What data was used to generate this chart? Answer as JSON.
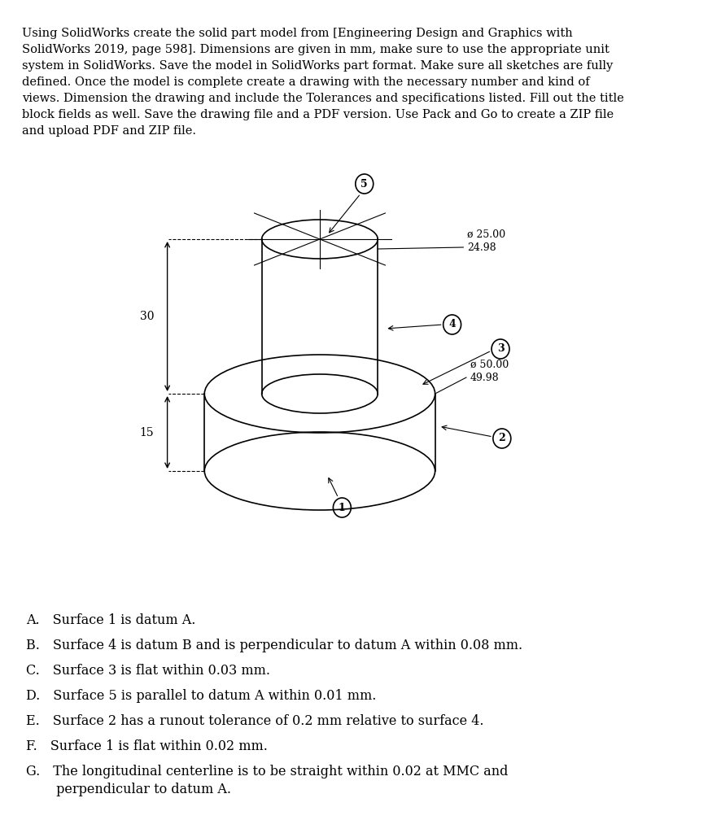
{
  "background_color": "#ffffff",
  "header_text": "Using SolidWorks create the solid part model from [Engineering Design and Graphics with\nSolidWorks 2019, page 598]. Dimensions are given in mm, make sure to use the appropriate unit\nsystem in SolidWorks. Save the model in SolidWorks part format. Make sure all sketches are fully\ndefined. Once the model is complete create a drawing with the necessary number and kind of\nviews. Dimension the drawing and include the Tolerances and specifications listed. Fill out the title\nblock fields as well. Save the drawing file and a PDF version. Use Pack and Go to create a ZIP file\nand upload PDF and ZIP file.",
  "spec_items": [
    "A. Surface 1 is datum A.",
    "B. Surface 4 is datum B and is perpendicular to datum A within 0.08 mm.",
    "C. Surface 3 is flat within 0.03 mm.",
    "D. Surface 5 is parallel to datum A within 0.01 mm.",
    "E. Surface 2 has a runout tolerance of 0.2 mm relative to surface 4.",
    "F. Surface 1 is flat within 0.02 mm.",
    "G. The longitudinal centerline is to be straight within 0.02 at MMC and\n   perpendicular to datum A."
  ],
  "dim_small_diam_label": "ø 25.00\n24.98",
  "dim_large_diam_label": "ø 50.00\n49.98",
  "dim_height1": "30",
  "dim_height2": "15",
  "surface_labels": [
    "1",
    "2",
    "3",
    "4",
    "5"
  ],
  "line_color": "#000000",
  "text_color": "#000000"
}
